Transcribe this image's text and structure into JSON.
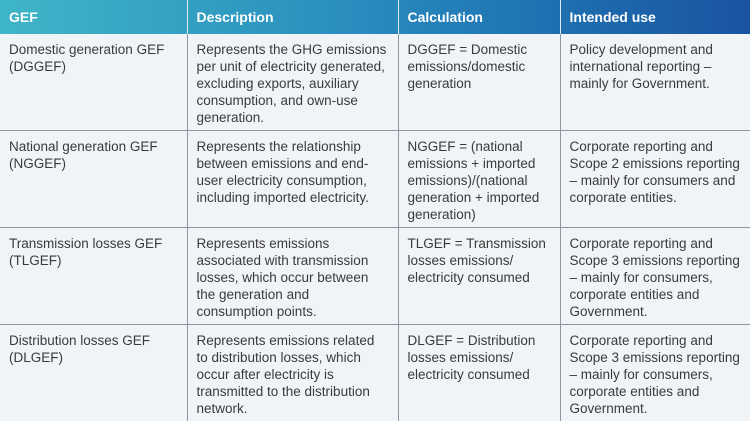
{
  "table": {
    "headers": [
      "GEF",
      "Description",
      "Calculation",
      "Intended use"
    ],
    "rows": [
      {
        "gef": "Domestic generation GEF (DGGEF)",
        "description": "Represents the GHG emissions per unit of electricity generated, excluding exports, auxiliary consumption, and own-use generation.",
        "calculation": "DGGEF = Domestic emissions/domestic generation",
        "intended_use": "Policy development and international reporting – mainly for Government."
      },
      {
        "gef": "National generation GEF (NGGEF)",
        "description": "Represents the relationship between emissions and end-user electricity consumption, including imported electricity.",
        "calculation": "NGGEF = (national emissions + imported emissions)/(national generation + imported generation)",
        "intended_use": "Corporate reporting and Scope 2 emissions reporting – mainly for consumers and corporate entities."
      },
      {
        "gef": "Transmission losses GEF (TLGEF)",
        "description": "Represents emissions associated with transmission losses, which occur between the generation and consumption points.",
        "calculation": "TLGEF = Transmission losses emissions/ electricity consumed",
        "intended_use": "Corporate reporting and Scope 3 emissions reporting – mainly for consumers, corporate entities and Government."
      },
      {
        "gef": "Distribution losses GEF (DLGEF)",
        "description": "Represents emissions related to distribution losses, which occur after electricity is transmitted to the distribution network.",
        "calculation": "DLGEF = Distribution losses emissions/ electricity consumed",
        "intended_use": "Corporate reporting and Scope 3 emissions reporting – mainly for consumers, corporate entities and Government."
      }
    ]
  }
}
